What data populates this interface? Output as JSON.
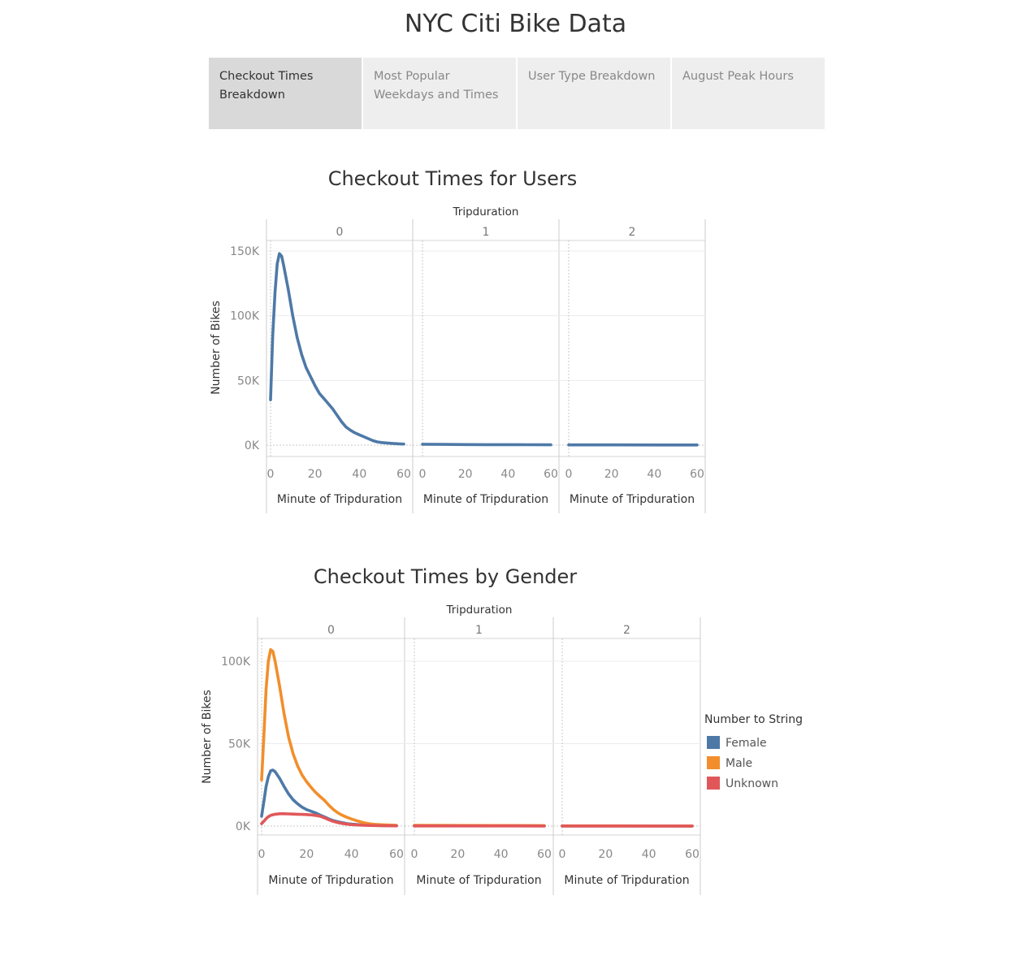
{
  "page": {
    "title": "NYC Citi Bike Data"
  },
  "tabs": [
    {
      "label": "Checkout Times Breakdown",
      "active": true
    },
    {
      "label": "Most Popular Weekdays and Times",
      "active": false
    },
    {
      "label": "User Type Breakdown",
      "active": false
    },
    {
      "label": "August Peak Hours",
      "active": false
    }
  ],
  "colors": {
    "female": "#4e79a7",
    "male": "#f28e2b",
    "unknown": "#e15759",
    "users": "#4e79a7"
  },
  "chart_data": [
    {
      "type": "line",
      "title": "Checkout Times for Users",
      "facet_header": "Tripduration",
      "facets": [
        "0",
        "1",
        "2"
      ],
      "xlabel": "Minute of Tripduration",
      "ylabel": "Number of Bikes",
      "xlim": [
        0,
        60
      ],
      "ylim": [
        0,
        150000
      ],
      "x_ticks": [
        "0",
        "20",
        "40",
        "60"
      ],
      "y_ticks": [
        {
          "value": 150000,
          "label": "150K"
        },
        {
          "value": 100000,
          "label": "100K"
        },
        {
          "value": 50000,
          "label": "50K"
        },
        {
          "value": 0,
          "label": "0K"
        }
      ],
      "grid": true,
      "series": [
        {
          "color": "#4e79a7",
          "panels": [
            [
              [
                0,
                35000
              ],
              [
                1,
                85000
              ],
              [
                2,
                118000
              ],
              [
                3,
                140000
              ],
              [
                4,
                148000
              ],
              [
                5,
                146000
              ],
              [
                6,
                138000
              ],
              [
                8,
                120000
              ],
              [
                10,
                100000
              ],
              [
                12,
                83000
              ],
              [
                14,
                70000
              ],
              [
                16,
                60000
              ],
              [
                18,
                53000
              ],
              [
                20,
                46000
              ],
              [
                22,
                40000
              ],
              [
                24,
                36000
              ],
              [
                26,
                32000
              ],
              [
                28,
                28000
              ],
              [
                30,
                23000
              ],
              [
                32,
                18000
              ],
              [
                34,
                14000
              ],
              [
                36,
                11500
              ],
              [
                38,
                9500
              ],
              [
                40,
                8000
              ],
              [
                42,
                6500
              ],
              [
                44,
                5000
              ],
              [
                46,
                3500
              ],
              [
                48,
                2500
              ],
              [
                50,
                2000
              ],
              [
                52,
                1700
              ],
              [
                55,
                1300
              ],
              [
                58,
                1000
              ],
              [
                60,
                800
              ]
            ],
            [
              [
                0,
                700
              ],
              [
                10,
                550
              ],
              [
                20,
                450
              ],
              [
                30,
                400
              ],
              [
                40,
                350
              ],
              [
                50,
                300
              ],
              [
                60,
                250
              ]
            ],
            [
              [
                0,
                200
              ],
              [
                20,
                170
              ],
              [
                40,
                150
              ],
              [
                60,
                130
              ]
            ]
          ]
        }
      ]
    },
    {
      "type": "line",
      "title": "Checkout Times by Gender",
      "facet_header": "Tripduration",
      "facets": [
        "0",
        "1",
        "2"
      ],
      "xlabel": "Minute of Tripduration",
      "ylabel": "Number of Bikes",
      "xlim": [
        0,
        60
      ],
      "ylim": [
        0,
        100000
      ],
      "x_ticks": [
        "0",
        "20",
        "40",
        "60"
      ],
      "y_ticks": [
        {
          "value": 100000,
          "label": "100K"
        },
        {
          "value": 50000,
          "label": "50K"
        },
        {
          "value": 0,
          "label": "0K"
        }
      ],
      "grid": true,
      "legend": {
        "title": "Number to String",
        "position": "right"
      },
      "series": [
        {
          "name": "Female",
          "color": "#4e79a7",
          "panels": [
            [
              [
                0,
                6000
              ],
              [
                1,
                15000
              ],
              [
                2,
                24000
              ],
              [
                3,
                30000
              ],
              [
                4,
                33500
              ],
              [
                5,
                34000
              ],
              [
                6,
                33000
              ],
              [
                8,
                29000
              ],
              [
                10,
                24000
              ],
              [
                12,
                19500
              ],
              [
                14,
                16000
              ],
              [
                16,
                13500
              ],
              [
                18,
                11500
              ],
              [
                20,
                10000
              ],
              [
                22,
                9000
              ],
              [
                24,
                8000
              ],
              [
                26,
                6700
              ],
              [
                28,
                5500
              ],
              [
                30,
                4300
              ],
              [
                32,
                3300
              ],
              [
                34,
                2600
              ],
              [
                36,
                2000
              ],
              [
                38,
                1500
              ],
              [
                40,
                1200
              ],
              [
                44,
                800
              ],
              [
                48,
                600
              ],
              [
                52,
                400
              ],
              [
                56,
                300
              ],
              [
                60,
                200
              ]
            ],
            [
              [
                0,
                300
              ],
              [
                20,
                250
              ],
              [
                40,
                200
              ],
              [
                60,
                150
              ]
            ],
            [
              [
                0,
                100
              ],
              [
                20,
                90
              ],
              [
                40,
                80
              ],
              [
                60,
                70
              ]
            ]
          ]
        },
        {
          "name": "Male",
          "color": "#f28e2b",
          "panels": [
            [
              [
                0,
                28000
              ],
              [
                1,
                55000
              ],
              [
                2,
                83000
              ],
              [
                3,
                100000
              ],
              [
                4,
                107000
              ],
              [
                5,
                106000
              ],
              [
                6,
                100000
              ],
              [
                8,
                85000
              ],
              [
                10,
                68000
              ],
              [
                12,
                54000
              ],
              [
                14,
                44000
              ],
              [
                16,
                36500
              ],
              [
                18,
                31000
              ],
              [
                20,
                27000
              ],
              [
                22,
                23500
              ],
              [
                24,
                20500
              ],
              [
                26,
                18000
              ],
              [
                28,
                15500
              ],
              [
                30,
                12500
              ],
              [
                32,
                10000
              ],
              [
                34,
                8000
              ],
              [
                36,
                6500
              ],
              [
                38,
                5300
              ],
              [
                40,
                4300
              ],
              [
                42,
                3400
              ],
              [
                44,
                2600
              ],
              [
                46,
                1900
              ],
              [
                48,
                1400
              ],
              [
                50,
                1100
              ],
              [
                54,
                800
              ],
              [
                58,
                600
              ],
              [
                60,
                500
              ]
            ],
            [
              [
                0,
                500
              ],
              [
                20,
                400
              ],
              [
                40,
                350
              ],
              [
                60,
                300
              ]
            ],
            [
              [
                0,
                150
              ],
              [
                20,
                130
              ],
              [
                40,
                110
              ],
              [
                60,
                100
              ]
            ]
          ]
        },
        {
          "name": "Unknown",
          "color": "#e15759",
          "panels": [
            [
              [
                0,
                1500
              ],
              [
                1,
                3000
              ],
              [
                2,
                4500
              ],
              [
                3,
                5700
              ],
              [
                4,
                6500
              ],
              [
                6,
                7200
              ],
              [
                8,
                7500
              ],
              [
                10,
                7500
              ],
              [
                12,
                7400
              ],
              [
                14,
                7300
              ],
              [
                16,
                7200
              ],
              [
                18,
                7100
              ],
              [
                20,
                7000
              ],
              [
                22,
                6800
              ],
              [
                24,
                6500
              ],
              [
                26,
                6000
              ],
              [
                28,
                5000
              ],
              [
                30,
                3800
              ],
              [
                32,
                2800
              ],
              [
                34,
                2100
              ],
              [
                36,
                1600
              ],
              [
                38,
                1200
              ],
              [
                40,
                900
              ],
              [
                44,
                600
              ],
              [
                48,
                400
              ],
              [
                52,
                300
              ],
              [
                56,
                200
              ],
              [
                60,
                150
              ]
            ],
            [
              [
                0,
                100
              ],
              [
                30,
                80
              ],
              [
                60,
                60
              ]
            ],
            [
              [
                0,
                50
              ],
              [
                30,
                40
              ],
              [
                60,
                30
              ]
            ]
          ]
        }
      ]
    }
  ]
}
